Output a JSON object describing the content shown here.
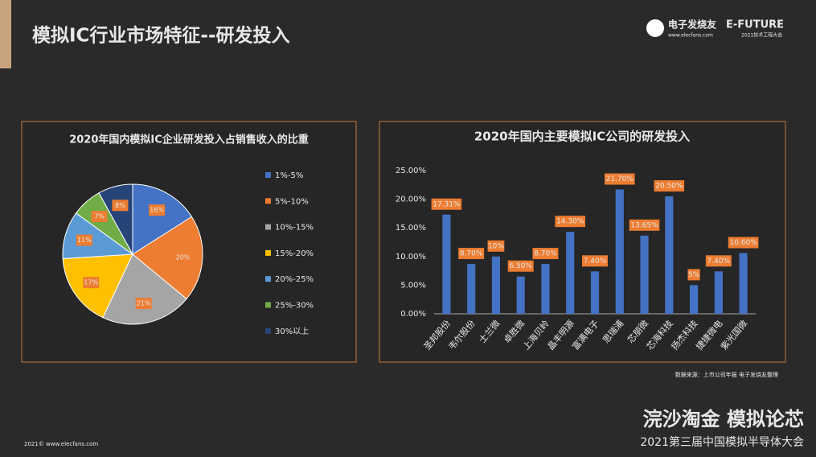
{
  "page": {
    "title": "模拟IC行业市场特征--研发投入",
    "logo": "电子发烧友",
    "logo_url": "www.elecfans.com",
    "brand": "E-FUTURE",
    "brand_sub": "2021技术工程大会",
    "source": "数据来源：上市公司年报 电子发烧友整理",
    "footer_left": "2021© www.elecfans.com",
    "slogan": "浣沙淘金 模拟论芯",
    "event": "2021第三届中国模拟半导体大会"
  },
  "chart_data": [
    {
      "type": "pie",
      "title": "2020年国内模拟IC企业研发投入占销售收入的比重",
      "categories": [
        "1%-5%",
        "5%-10%",
        "10%-15%",
        "15%-20%",
        "20%-25%",
        "25%-30%",
        "30%以上"
      ],
      "values": [
        16,
        20,
        21,
        17,
        11,
        7,
        8
      ],
      "value_labels": [
        "16%",
        "20%",
        "21%",
        "17%",
        "11%",
        "7%",
        "8%"
      ],
      "colors": [
        "#4472c4",
        "#ed7d31",
        "#a5a5a5",
        "#ffc000",
        "#5b9bd5",
        "#70ad47",
        "#264478"
      ],
      "legend": "right"
    },
    {
      "type": "bar",
      "title": "2020年国内主要模拟IC公司的研发投入",
      "categories": [
        "圣邦股份",
        "韦尔股份",
        "士兰微",
        "卓胜微",
        "上海贝岭",
        "晶丰明源",
        "富满电子",
        "思瑞浦",
        "芯朋微",
        "芯海科技",
        "扬杰科技",
        "捷捷微电",
        "紫光国微"
      ],
      "values": [
        17.31,
        8.7,
        10,
        6.5,
        8.7,
        14.3,
        7.4,
        21.7,
        13.65,
        20.5,
        5,
        7.4,
        10.6
      ],
      "value_labels": [
        "17.31%",
        "8.70%",
        "10%",
        "6.50%",
        "8.70%",
        "14.30%",
        "7.40%",
        "21.70%",
        "13.65%",
        "20.50%",
        "5%",
        "7.40%",
        "10.60%"
      ],
      "color": "#4472c4",
      "label_color": "#ed7d31",
      "ylim": [
        0,
        25
      ],
      "yticks": [
        {
          "value": 0,
          "label": "0.00%"
        },
        {
          "value": 5,
          "label": "5.00%"
        },
        {
          "value": 10,
          "label": "10.00%"
        },
        {
          "value": 15,
          "label": "15.00%"
        },
        {
          "value": 20,
          "label": "20.00%"
        },
        {
          "value": 25,
          "label": "25.00%"
        }
      ],
      "grid": false
    }
  ]
}
